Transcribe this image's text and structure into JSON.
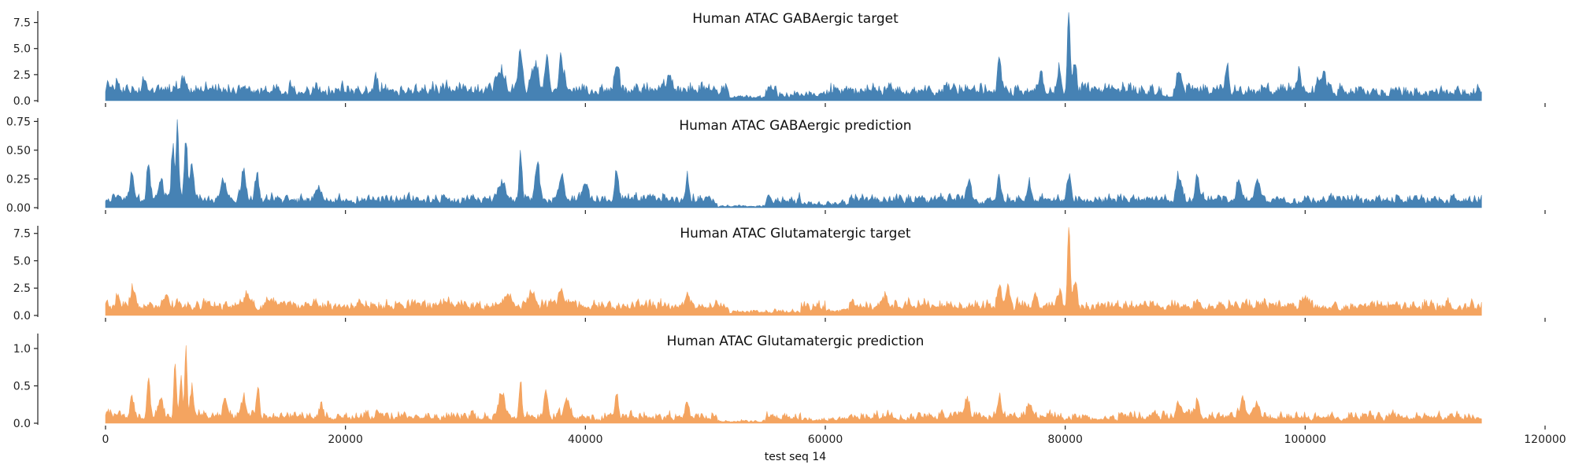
{
  "chart_data": {
    "type": "area",
    "xlabel": "test seq 14",
    "xlim": [
      0,
      120000
    ],
    "x_ticks": [
      0,
      20000,
      40000,
      60000,
      80000,
      100000,
      120000
    ],
    "x_tick_labels": [
      "0",
      "20000",
      "40000",
      "60000",
      "80000",
      "100000",
      "120000"
    ],
    "x_data_range": [
      0,
      114700
    ],
    "panels": [
      {
        "title": "Human ATAC GABAergic target",
        "color": "#4682b4",
        "ylim": [
          0,
          8.6
        ],
        "y_ticks": [
          0,
          2.5,
          5,
          7.5
        ],
        "y_tick_labels": [
          "0.0",
          "2.5",
          "5.0",
          "7.5"
        ],
        "baseline": 0.55,
        "noise": 0.75,
        "peaks": [
          [
            1000,
            0.9,
            250
          ],
          [
            3200,
            1.1,
            250
          ],
          [
            6500,
            1.2,
            250
          ],
          [
            9000,
            0.7,
            250
          ],
          [
            22500,
            1.3,
            200
          ],
          [
            33000,
            2.0,
            400
          ],
          [
            34600,
            4.4,
            220
          ],
          [
            35800,
            2.5,
            350
          ],
          [
            36800,
            3.3,
            220
          ],
          [
            38000,
            2.6,
            300
          ],
          [
            42600,
            2.7,
            250
          ],
          [
            47000,
            1.4,
            300
          ],
          [
            74500,
            2.8,
            220
          ],
          [
            78000,
            2.0,
            250
          ],
          [
            79500,
            2.4,
            200
          ],
          [
            80300,
            7.7,
            160
          ],
          [
            80800,
            2.8,
            200
          ],
          [
            89500,
            1.5,
            300
          ],
          [
            93500,
            2.1,
            200
          ],
          [
            99500,
            2.3,
            180
          ],
          [
            101500,
            1.5,
            300
          ]
        ],
        "lows": [
          [
            52000,
            55000,
            0.35
          ],
          [
            56000,
            60000,
            0.55
          ],
          [
            88000,
            89000,
            0.4
          ],
          [
            105000,
            114700,
            0.8
          ]
        ]
      },
      {
        "title": "Human ATAC GABAergic prediction",
        "color": "#4682b4",
        "ylim": [
          0,
          0.78
        ],
        "y_ticks": [
          0,
          0.25,
          0.5,
          0.75
        ],
        "y_tick_labels": [
          "0.00",
          "0.25",
          "0.50",
          "0.75"
        ],
        "baseline": 0.04,
        "noise": 0.05,
        "peaks": [
          [
            2200,
            0.25,
            200
          ],
          [
            3600,
            0.3,
            200
          ],
          [
            4600,
            0.2,
            250
          ],
          [
            5600,
            0.45,
            180
          ],
          [
            6000,
            0.68,
            140
          ],
          [
            6700,
            0.55,
            180
          ],
          [
            7200,
            0.3,
            200
          ],
          [
            9800,
            0.2,
            250
          ],
          [
            11500,
            0.22,
            250
          ],
          [
            12600,
            0.22,
            200
          ],
          [
            17800,
            0.12,
            250
          ],
          [
            33000,
            0.15,
            400
          ],
          [
            34600,
            0.48,
            150
          ],
          [
            36000,
            0.3,
            300
          ],
          [
            38000,
            0.22,
            300
          ],
          [
            40000,
            0.18,
            300
          ],
          [
            42600,
            0.28,
            200
          ],
          [
            48500,
            0.2,
            180
          ],
          [
            72000,
            0.2,
            250
          ],
          [
            74500,
            0.2,
            200
          ],
          [
            77000,
            0.2,
            200
          ],
          [
            80300,
            0.2,
            200
          ],
          [
            89500,
            0.2,
            300
          ],
          [
            91000,
            0.18,
            250
          ],
          [
            94500,
            0.2,
            250
          ],
          [
            96000,
            0.16,
            300
          ]
        ],
        "lows": [
          [
            51000,
            55000,
            0.2
          ],
          [
            58000,
            62000,
            0.5
          ]
        ]
      },
      {
        "title": "Human ATAC Glutamatergic target",
        "color": "#f4a460",
        "ylim": [
          0,
          8.2
        ],
        "y_ticks": [
          0,
          2.5,
          5,
          7.5
        ],
        "y_tick_labels": [
          "0.0",
          "2.5",
          "5.0",
          "7.5"
        ],
        "baseline": 0.55,
        "noise": 0.55,
        "peaks": [
          [
            1000,
            0.9,
            250
          ],
          [
            2300,
            1.5,
            300
          ],
          [
            5000,
            1.0,
            300
          ],
          [
            11800,
            1.1,
            250
          ],
          [
            33500,
            1.0,
            400
          ],
          [
            35500,
            1.2,
            400
          ],
          [
            38000,
            0.9,
            350
          ],
          [
            48500,
            1.0,
            250
          ],
          [
            65000,
            1.0,
            300
          ],
          [
            74500,
            2.4,
            220
          ],
          [
            75200,
            1.8,
            200
          ],
          [
            77500,
            1.2,
            250
          ],
          [
            79600,
            1.5,
            200
          ],
          [
            80300,
            7.3,
            150
          ],
          [
            80800,
            2.5,
            200
          ],
          [
            100000,
            1.0,
            400
          ]
        ],
        "lows": [
          [
            52000,
            58000,
            0.4
          ],
          [
            60000,
            62000,
            0.5
          ]
        ]
      },
      {
        "title": "Human ATAC Glutamatergic prediction",
        "color": "#f4a460",
        "ylim": [
          0,
          1.2
        ],
        "y_ticks": [
          0,
          0.5,
          1.0
        ],
        "y_tick_labels": [
          "0.0",
          "0.5",
          "1.0"
        ],
        "baseline": 0.04,
        "noise": 0.08,
        "peaks": [
          [
            2200,
            0.3,
            200
          ],
          [
            3600,
            0.5,
            180
          ],
          [
            4600,
            0.25,
            250
          ],
          [
            5800,
            0.75,
            150
          ],
          [
            6300,
            0.55,
            150
          ],
          [
            6700,
            1.05,
            130
          ],
          [
            7200,
            0.4,
            200
          ],
          [
            10000,
            0.25,
            250
          ],
          [
            11500,
            0.22,
            250
          ],
          [
            12700,
            0.4,
            180
          ],
          [
            18000,
            0.15,
            250
          ],
          [
            33000,
            0.3,
            350
          ],
          [
            34600,
            0.5,
            150
          ],
          [
            36700,
            0.4,
            200
          ],
          [
            38500,
            0.25,
            300
          ],
          [
            42600,
            0.38,
            180
          ],
          [
            48500,
            0.2,
            180
          ],
          [
            71800,
            0.28,
            250
          ],
          [
            74500,
            0.28,
            200
          ],
          [
            77000,
            0.2,
            200
          ],
          [
            89500,
            0.2,
            300
          ],
          [
            91000,
            0.2,
            250
          ],
          [
            94800,
            0.28,
            250
          ],
          [
            96000,
            0.15,
            300
          ]
        ],
        "lows": [
          [
            51000,
            55000,
            0.3
          ],
          [
            58000,
            62000,
            0.5
          ]
        ]
      }
    ]
  }
}
